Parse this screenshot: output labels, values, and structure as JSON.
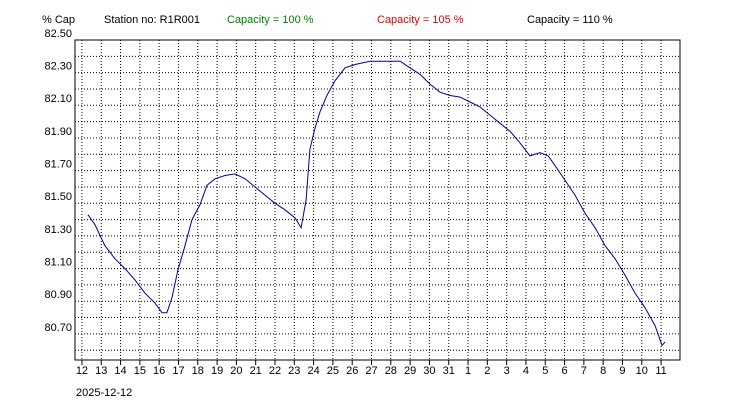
{
  "chart_data": {
    "type": "line",
    "y_label": "% Cap",
    "station": "Station no: R1R001",
    "header_labels": [
      {
        "text": "Capacity = 100 %",
        "color": "#008000"
      },
      {
        "text": "Capacity = 105 %",
        "color": "#e00000"
      },
      {
        "text": "Capacity = 110 %",
        "color": "#000000"
      }
    ],
    "start_date": "2025-12-12",
    "grid": true,
    "xlim": [
      -0.36,
      30.98
    ],
    "ylim": [
      80.54,
      82.5
    ],
    "xticks": [
      {
        "value": 0,
        "label": "12"
      },
      {
        "value": 1,
        "label": "13"
      },
      {
        "value": 2,
        "label": "14"
      },
      {
        "value": 3,
        "label": "15"
      },
      {
        "value": 4,
        "label": "16"
      },
      {
        "value": 5,
        "label": "17"
      },
      {
        "value": 6,
        "label": "18"
      },
      {
        "value": 7,
        "label": "19"
      },
      {
        "value": 8,
        "label": "20"
      },
      {
        "value": 9,
        "label": "21"
      },
      {
        "value": 10,
        "label": "22"
      },
      {
        "value": 11,
        "label": "23"
      },
      {
        "value": 12,
        "label": "24"
      },
      {
        "value": 13,
        "label": "25"
      },
      {
        "value": 14,
        "label": "26"
      },
      {
        "value": 15,
        "label": "27"
      },
      {
        "value": 16,
        "label": "28"
      },
      {
        "value": 17,
        "label": "29"
      },
      {
        "value": 18,
        "label": "30"
      },
      {
        "value": 19,
        "label": "31"
      },
      {
        "value": 20,
        "label": "1"
      },
      {
        "value": 21,
        "label": "2"
      },
      {
        "value": 22,
        "label": "3"
      },
      {
        "value": 23,
        "label": "4"
      },
      {
        "value": 24,
        "label": "5"
      },
      {
        "value": 25,
        "label": "6"
      },
      {
        "value": 26,
        "label": "7"
      },
      {
        "value": 27,
        "label": "8"
      },
      {
        "value": 28,
        "label": "9"
      },
      {
        "value": 29,
        "label": "10"
      },
      {
        "value": 30,
        "label": "11"
      }
    ],
    "yticks": [
      {
        "value": 82.5,
        "label": "82.50"
      },
      {
        "value": 82.3,
        "label": "82.30"
      },
      {
        "value": 82.1,
        "label": "82.10"
      },
      {
        "value": 81.9,
        "label": "81.90"
      },
      {
        "value": 81.7,
        "label": "81.70"
      },
      {
        "value": 81.5,
        "label": "81.50"
      },
      {
        "value": 81.3,
        "label": "81.30"
      },
      {
        "value": 81.1,
        "label": "81.10"
      },
      {
        "value": 80.9,
        "label": "80.90"
      },
      {
        "value": 80.7,
        "label": "80.70"
      }
    ],
    "yminor": [
      82.4,
      82.2,
      82.0,
      81.8,
      81.6,
      81.4,
      81.2,
      81.0,
      80.8,
      80.6
    ],
    "series": [
      {
        "color": "#0000a0",
        "x": [
          0.31,
          0.67,
          1.19,
          1.71,
          2.23,
          2.75,
          3.26,
          3.78,
          4.15,
          4.4,
          4.66,
          4.97,
          5.34,
          5.7,
          6.11,
          6.48,
          6.89,
          7.41,
          7.93,
          8.45,
          8.96,
          9.48,
          10.0,
          10.52,
          11.04,
          11.35,
          11.61,
          11.81,
          12.07,
          12.33,
          12.69,
          13.11,
          13.63,
          14.15,
          14.92,
          15.7,
          16.48,
          16.99,
          17.51,
          18.03,
          18.55,
          19.07,
          19.59,
          20.1,
          20.62,
          21.14,
          21.66,
          22.18,
          22.69,
          23.21,
          23.73,
          24.15,
          24.51,
          25.03,
          25.54,
          26.06,
          26.58,
          27.1,
          27.62,
          28.13,
          28.65,
          29.17,
          29.69,
          30.05,
          30.21
        ],
        "values": [
          81.43,
          81.37,
          81.24,
          81.16,
          81.1,
          81.03,
          80.95,
          80.89,
          80.83,
          80.83,
          80.92,
          81.09,
          81.24,
          81.4,
          81.49,
          81.61,
          81.65,
          81.67,
          81.68,
          81.65,
          81.6,
          81.55,
          81.5,
          81.46,
          81.41,
          81.35,
          81.52,
          81.83,
          81.96,
          82.06,
          82.16,
          82.25,
          82.33,
          82.35,
          82.37,
          82.37,
          82.37,
          82.33,
          82.29,
          82.23,
          82.18,
          82.16,
          82.15,
          82.12,
          82.09,
          82.04,
          81.99,
          81.94,
          81.87,
          81.79,
          81.81,
          81.79,
          81.73,
          81.64,
          81.55,
          81.44,
          81.35,
          81.24,
          81.16,
          81.06,
          80.95,
          80.86,
          80.75,
          80.63,
          80.65
        ]
      }
    ]
  }
}
